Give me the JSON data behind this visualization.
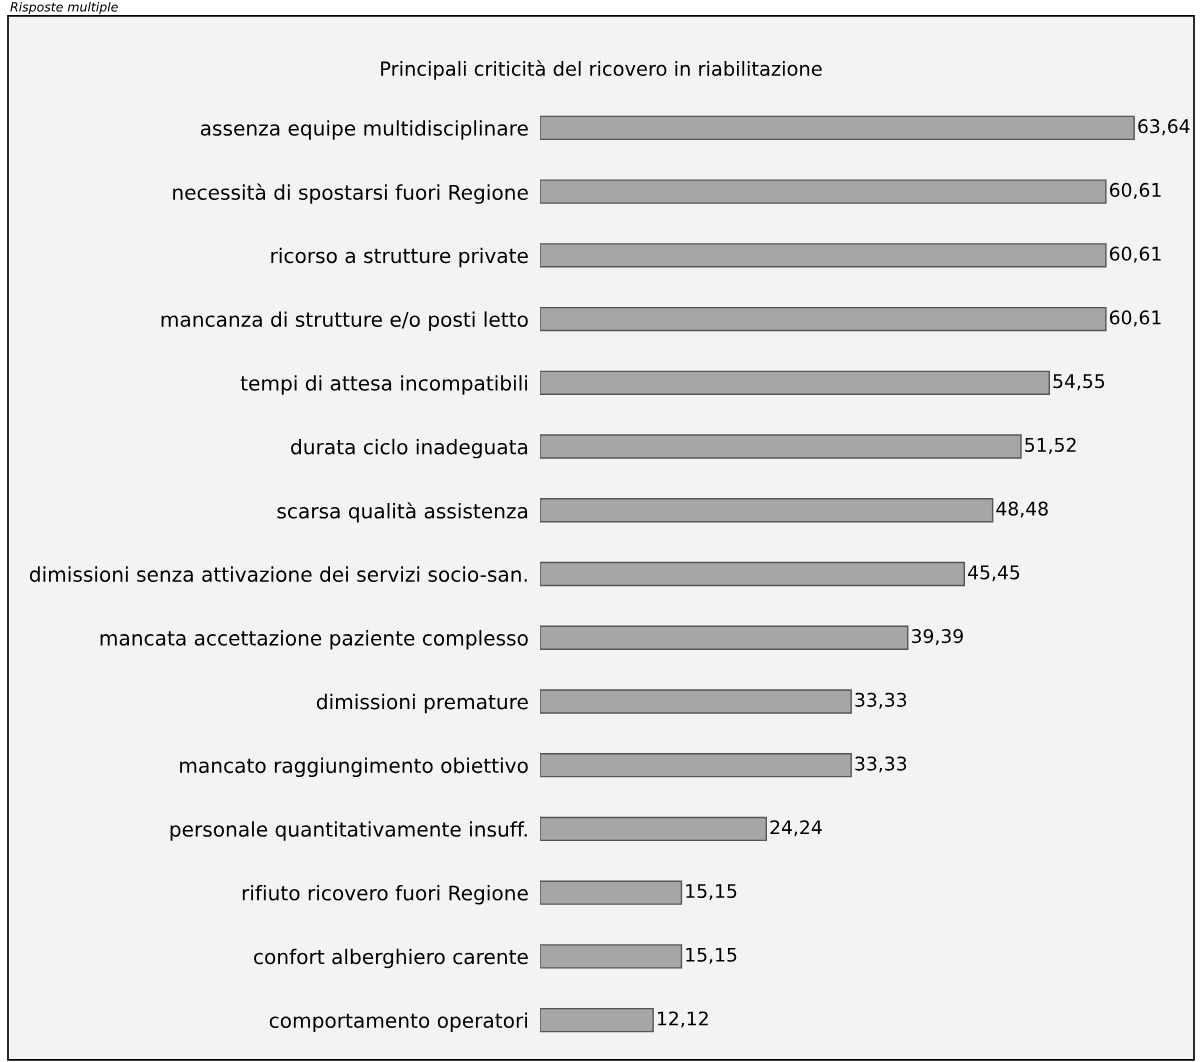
{
  "chart_data": {
    "type": "bar",
    "orientation": "horizontal",
    "title": "Principali criticità del ricovero in riabilitazione",
    "annotations": [
      "Risposte multiple"
    ],
    "categories": [
      "assenza equipe multidisciplinare",
      "necessità di spostarsi fuori Regione",
      "ricorso a strutture private",
      "mancanza di strutture e/o posti letto",
      "tempi di attesa incompatibili",
      "durata ciclo inadeguata",
      "scarsa qualità assistenza",
      "dimissioni senza attivazione dei servizi socio-san.",
      "mancata accettazione paziente complesso",
      "dimissioni premature",
      "mancato raggiungimento obiettivo",
      "personale quantitativamente insuff.",
      "rifiuto ricovero fuori Regione",
      "confort alberghiero carente",
      "comportamento operatori"
    ],
    "values": [
      63.64,
      60.61,
      60.61,
      60.61,
      54.55,
      51.52,
      48.48,
      45.45,
      39.39,
      33.33,
      33.33,
      24.24,
      15.15,
      15.15,
      12.12
    ],
    "value_labels": [
      "63,64",
      "60,61",
      "60,61",
      "60,61",
      "54,55",
      "51,52",
      "48,48",
      "45,45",
      "39,39",
      "33,33",
      "33,33",
      "24,24",
      "15,15",
      "15,15",
      "12,12"
    ],
    "color": "#a6a6a6"
  }
}
